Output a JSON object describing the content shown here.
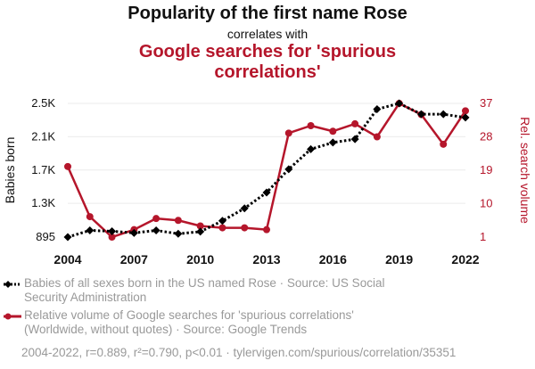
{
  "chart_data": {
    "type": "line",
    "title": "Popularity of the first name Rose",
    "subtitle": "correlates with",
    "title2": "Google searches for 'spurious correlations'",
    "x": [
      2004,
      2005,
      2006,
      2007,
      2008,
      2009,
      2010,
      2011,
      2012,
      2013,
      2014,
      2015,
      2016,
      2017,
      2018,
      2019,
      2020,
      2021,
      2022
    ],
    "x_ticks": [
      "2004",
      "2007",
      "2010",
      "2013",
      "2016",
      "2019",
      "2022"
    ],
    "grid": true,
    "left_axis": {
      "label": "Babies born",
      "ticks": [
        "2.5K",
        "2.1K",
        "1.7K",
        "1.3K",
        "895"
      ],
      "tick_values": [
        2500,
        2100,
        1700,
        1300,
        895
      ],
      "range": [
        895,
        2500
      ]
    },
    "right_axis": {
      "label": "Rel. search volume",
      "ticks": [
        "37",
        "28",
        "19",
        "10",
        "1"
      ],
      "tick_values": [
        37,
        28,
        19,
        10,
        1
      ],
      "range": [
        1,
        37
      ]
    },
    "series": [
      {
        "name": "Babies of all sexes born in the US named Rose · Source: US Social Security Administration",
        "axis": "left",
        "color": "#000000",
        "style": "dotted",
        "marker": "diamond",
        "values": [
          895,
          975,
          965,
          945,
          975,
          935,
          960,
          1090,
          1240,
          1430,
          1710,
          1950,
          2030,
          2070,
          2430,
          2500,
          2370,
          2370,
          2330
        ]
      },
      {
        "name": "Relative volume of Google searches for 'spurious correlations' (Worldwide, without quotes) · Source: Google Trends",
        "axis": "right",
        "color": "#b5162b",
        "style": "solid",
        "marker": "circle",
        "values": [
          20,
          6.5,
          1,
          3,
          6,
          5.5,
          4,
          3.5,
          3.5,
          3,
          29,
          31,
          29.5,
          31.5,
          28,
          37,
          34,
          26,
          35
        ]
      }
    ],
    "footer": "2004-2022, r=0.889, r²=0.790, p<0.01 · tylervigen.com/spurious/correlation/35351"
  }
}
